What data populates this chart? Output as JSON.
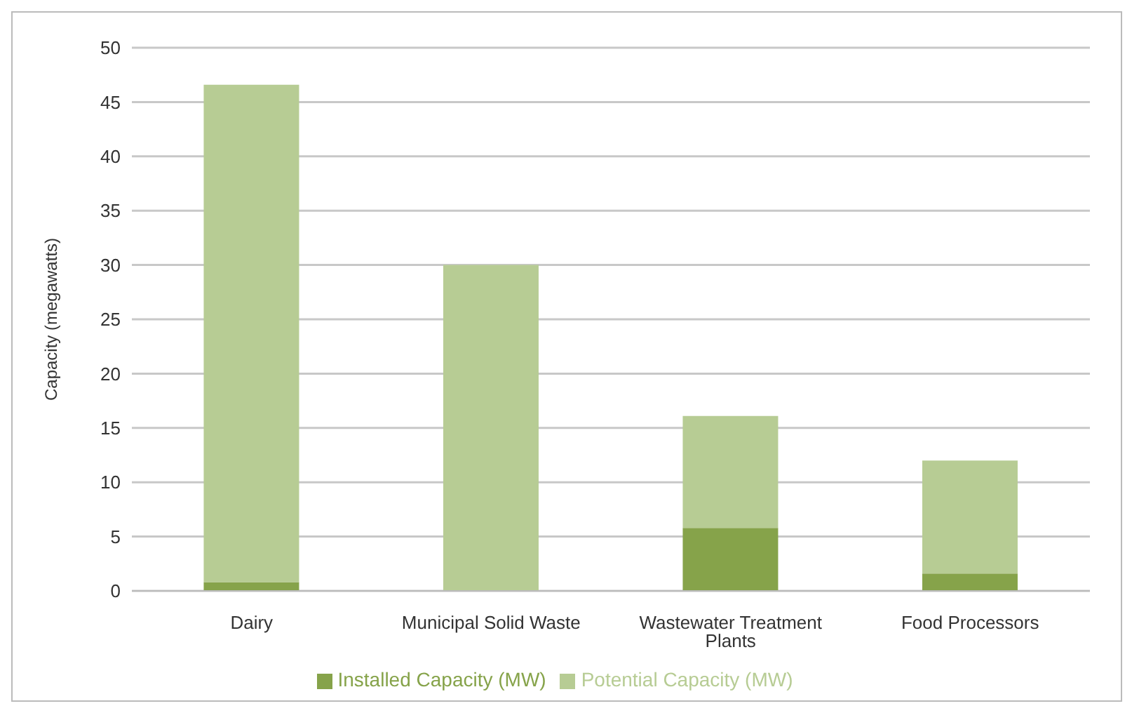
{
  "chart_data": {
    "type": "bar",
    "ylabel": "Capacity (megawatts)",
    "categories": [
      "Dairy",
      "Municipal Solid Waste",
      "Wastewater Treatment Plants",
      "Food Processors"
    ],
    "series": [
      {
        "name": "Installed Capacity (MW)",
        "color": "#86a34a",
        "values": [
          0.8,
          0,
          5.8,
          1.6
        ]
      },
      {
        "name": "Potential Capacity (MW)",
        "color": "#b7cc94",
        "values": [
          45.8,
          30,
          10.3,
          10.4
        ]
      }
    ],
    "stacked": true,
    "ylim": [
      0,
      50
    ],
    "yticks": [
      0,
      5,
      10,
      15,
      20,
      25,
      30,
      35,
      40,
      45,
      50
    ],
    "grid": "y",
    "legend": "bottom"
  }
}
